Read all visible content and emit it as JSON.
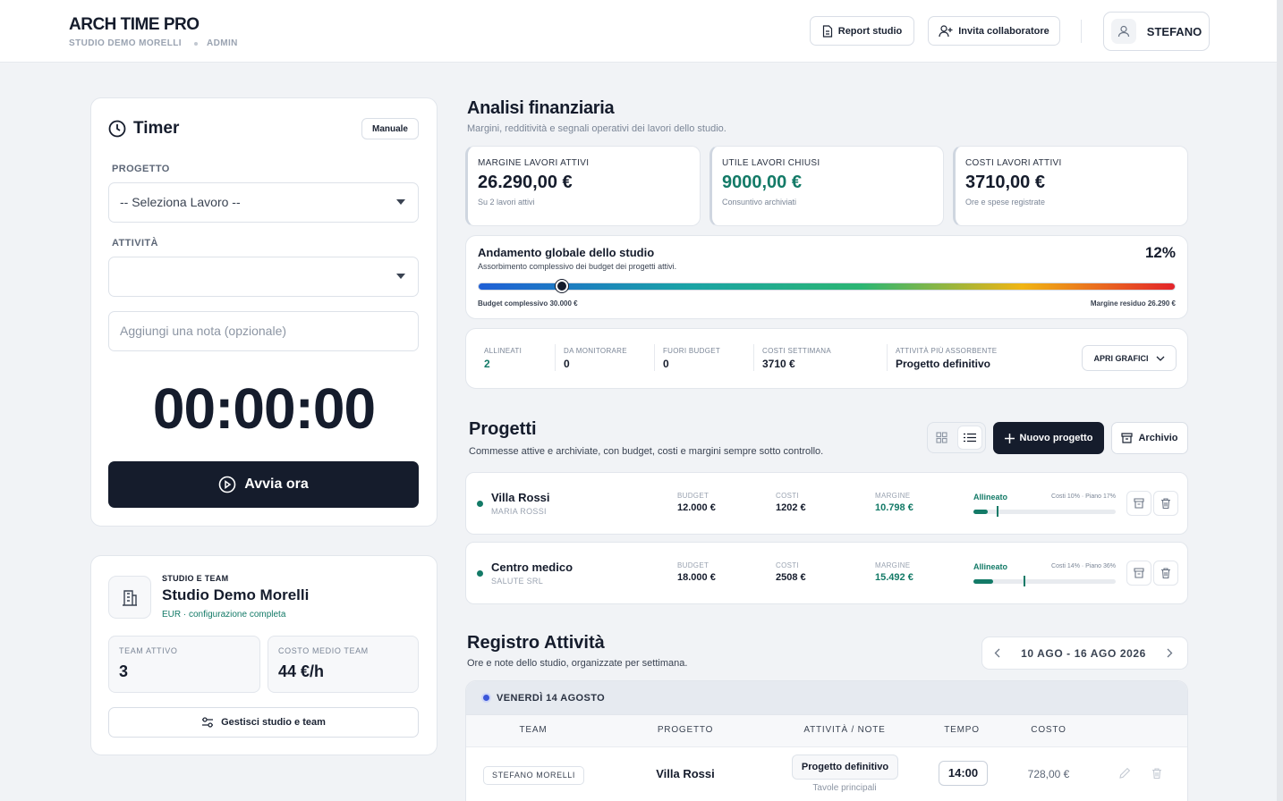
{
  "header": {
    "title": "ARCH TIME PRO",
    "studio": "STUDIO DEMO MORELLI",
    "role": "ADMIN",
    "report": "Report studio",
    "invite": "Invita collaboratore",
    "user": "STEFANO"
  },
  "timer": {
    "title": "Timer",
    "mode": "Manuale",
    "project_label": "PROGETTO",
    "project_placeholder": "-- Seleziona Lavoro --",
    "activity_label": "ATTIVITÀ",
    "note_placeholder": "Aggiungi una nota (opzionale)",
    "display": "00:00:00",
    "start": "Avvia ora"
  },
  "studio": {
    "kicker": "STUDIO E TEAM",
    "name": "Studio Demo Morelli",
    "config": "EUR · configurazione completa",
    "stats": [
      {
        "label": "TEAM ATTIVO",
        "value": "3"
      },
      {
        "label": "COSTO MEDIO TEAM",
        "value": "44 €/h"
      }
    ],
    "manage": "Gestisci studio e team"
  },
  "finance": {
    "title": "Analisi finanziaria",
    "subtitle": "Margini, redditività e segnali operativi dei lavori dello studio.",
    "kpis": [
      {
        "label": "MARGINE LAVORI ATTIVI",
        "value": "26.290,00 €",
        "note": "Su 2 lavori attivi"
      },
      {
        "label": "UTILE LAVORI CHIUSI",
        "value": "9000,00 €",
        "note": "Consuntivo archiviati"
      },
      {
        "label": "COSTI LAVORI ATTIVI",
        "value": "3710,00 €",
        "note": "Ore e spese registrate"
      }
    ],
    "global": {
      "title": "Andamento globale dello studio",
      "subtitle": "Assorbimento complessivo dei budget dei progetti attivi.",
      "percent": 12,
      "percent_label": "12%",
      "budget": "Budget complessivo 30.000 €",
      "residual": "Margine residuo 26.290 €"
    },
    "signals": [
      {
        "label": "ALLINEATI",
        "value": "2"
      },
      {
        "label": "DA MONITORARE",
        "value": "0"
      },
      {
        "label": "FUORI BUDGET",
        "value": "0"
      },
      {
        "label": "COSTI SETTIMANA",
        "value": "3710 €"
      },
      {
        "label": "ATTIVITÀ PIÙ ASSORBENTE",
        "value": "Progetto definitivo"
      }
    ],
    "charts_button": "APRI GRAFICI"
  },
  "projects": {
    "title": "Progetti",
    "subtitle": "Commesse attive e archiviate, con budget, costi e margini sempre sotto controllo.",
    "new": "Nuovo progetto",
    "archive": "Archivio",
    "columns": [
      "BUDGET",
      "COSTI",
      "MARGINE"
    ],
    "items": [
      {
        "name": "Villa Rossi",
        "client": "MARIA ROSSI",
        "budget": "12.000 €",
        "costs": "1202 €",
        "margin": "10.798 €",
        "status": "Allineato",
        "usage": "Costi 10% · Piano 17%",
        "cost_pct": 10,
        "plan_pct": 17
      },
      {
        "name": "Centro medico",
        "client": "SALUTE SRL",
        "budget": "18.000 €",
        "costs": "2508 €",
        "margin": "15.492 €",
        "status": "Allineato",
        "usage": "Costi 14% · Piano 36%",
        "cost_pct": 14,
        "plan_pct": 36
      }
    ]
  },
  "log": {
    "title": "Registro Attività",
    "subtitle": "Ore e note dello studio, organizzate per settimana.",
    "week": "10 AGO - 16 AGO 2026",
    "day": "VENERDÌ 14 AGOSTO",
    "columns": [
      "TEAM",
      "PROGETTO",
      "ATTIVITÀ / NOTE",
      "TEMPO",
      "COSTO"
    ],
    "entries": [
      {
        "member": "STEFANO MORELLI",
        "project": "Villa Rossi",
        "activity": "Progetto definitivo",
        "note": "Tavole principali",
        "time": "14:00",
        "cost": "728,00 €"
      }
    ]
  }
}
